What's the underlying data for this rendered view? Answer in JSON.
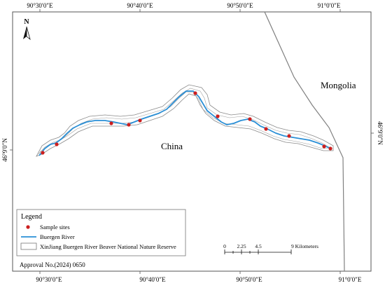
{
  "map": {
    "top_ticks": [
      "90°30′0″E",
      "90°40′0″E",
      "90°50′0″E",
      "91°0′0″E"
    ],
    "bottom_ticks": [
      "90°30′0″E",
      "90°40′0″E",
      "90°50′0″E",
      "91°0′0″E"
    ],
    "left_tick": "46°9′0″N",
    "right_tick": "46°9′0″N",
    "north_label": "N",
    "places": {
      "china": "China",
      "mongolia": "Mongolia"
    },
    "legend": {
      "title": "Legend",
      "items": [
        {
          "label": "Sample sites",
          "color": "#cc1f1f"
        },
        {
          "label": "Buergen River",
          "color": "#2a8fd6"
        },
        {
          "label": "XinJiang Buergen River Beaver National Nature Reserve",
          "color": "#777777"
        }
      ]
    },
    "scale_bar": {
      "labels": [
        "0",
        "2.25",
        "4.5",
        "9 Kilometers"
      ]
    },
    "approval": "Approval No.(2024) 0650",
    "colors": {
      "river": "#2a8fd6",
      "site": "#cc1f1f",
      "border": "#808080",
      "frame": "#555555"
    }
  }
}
